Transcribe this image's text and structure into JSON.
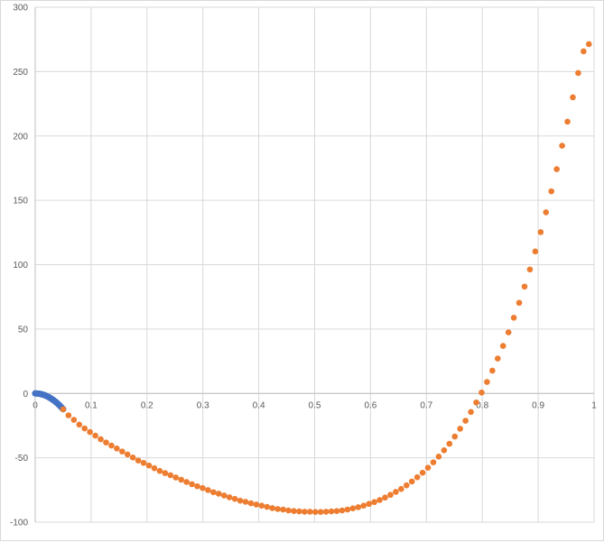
{
  "chart_data": {
    "type": "scatter",
    "title": "",
    "xlabel": "",
    "ylabel": "",
    "xlim": [
      0,
      1
    ],
    "ylim": [
      -100,
      300
    ],
    "x_ticks": [
      "0",
      "0.1",
      "0.2",
      "0.3",
      "0.4",
      "0.5",
      "0.6",
      "0.7",
      "0.8",
      "0.9",
      "1"
    ],
    "y_ticks": [
      "-100",
      "-50",
      "0",
      "50",
      "100",
      "150",
      "200",
      "250",
      "300"
    ],
    "grid": true,
    "legend": "none",
    "series": [
      {
        "color": "#4472C4",
        "x": [
          0,
          0.0025,
          0.005,
          0.0075,
          0.01,
          0.0125,
          0.015,
          0.0175,
          0.02,
          0.0225,
          0.025,
          0.0275,
          0.03,
          0.0325,
          0.035,
          0.0375,
          0.04,
          0.0425,
          0.045,
          0.0475,
          0.05
        ],
        "y": [
          0,
          -0.03,
          -0.12,
          -0.28,
          -0.49,
          -0.77,
          -1.1,
          -1.5,
          -1.96,
          -2.48,
          -3.06,
          -3.71,
          -4.41,
          -5.18,
          -6.0,
          -6.89,
          -7.84,
          -8.85,
          -9.92,
          -11.06,
          -12.25
        ]
      },
      {
        "color": "#ED7D31",
        "x": [
          0.05,
          0.0596,
          0.0692,
          0.0788,
          0.0884,
          0.098,
          0.1076,
          0.1172,
          0.1268,
          0.1364,
          0.146,
          0.1556,
          0.1652,
          0.1748,
          0.1844,
          0.194,
          0.2036,
          0.2132,
          0.2228,
          0.2324,
          0.242,
          0.2516,
          0.2612,
          0.2708,
          0.2804,
          0.29,
          0.2996,
          0.3092,
          0.3188,
          0.3284,
          0.338,
          0.3476,
          0.3572,
          0.3668,
          0.3764,
          0.386,
          0.3956,
          0.4052,
          0.4148,
          0.4244,
          0.434,
          0.4436,
          0.4532,
          0.4628,
          0.4724,
          0.482,
          0.4916,
          0.5012,
          0.5108,
          0.5204,
          0.53,
          0.5396,
          0.5492,
          0.5588,
          0.5684,
          0.578,
          0.5876,
          0.5972,
          0.6068,
          0.6164,
          0.626,
          0.6356,
          0.6452,
          0.6548,
          0.6644,
          0.674,
          0.6836,
          0.6932,
          0.7028,
          0.7124,
          0.722,
          0.7316,
          0.7412,
          0.7508,
          0.7604,
          0.77,
          0.7796,
          0.7892,
          0.7988,
          0.8084,
          0.818,
          0.8276,
          0.8372,
          0.8468,
          0.8564,
          0.866,
          0.8756,
          0.8852,
          0.8948,
          0.9044,
          0.914,
          0.9236,
          0.9332,
          0.9428,
          0.9524,
          0.962,
          0.9716,
          0.9812,
          0.9908
        ],
        "y": [
          -12.3,
          -17,
          -20.5,
          -24.2,
          -27.2,
          -30,
          -32.8,
          -35.6,
          -38.1,
          -40.5,
          -42.8,
          -45.1,
          -47.4,
          -49.8,
          -52.1,
          -54,
          -56,
          -58.1,
          -60.2,
          -61.9,
          -63.5,
          -65.3,
          -67,
          -68.8,
          -70.5,
          -72.1,
          -73.5,
          -75.1,
          -76.7,
          -77.9,
          -79.3,
          -80.7,
          -81.9,
          -83.3,
          -84.2,
          -85.3,
          -86.3,
          -87.2,
          -88.1,
          -89.1,
          -89.8,
          -90.2,
          -90.9,
          -91.4,
          -91.6,
          -91.9,
          -91.9,
          -92.1,
          -92.1,
          -91.9,
          -91.6,
          -91.4,
          -90.9,
          -90.2,
          -89.3,
          -88.4,
          -87.2,
          -85.8,
          -84.4,
          -82.8,
          -80.9,
          -78.8,
          -76.5,
          -74.2,
          -71.4,
          -68.4,
          -65.1,
          -61.6,
          -57.7,
          -53.5,
          -49.1,
          -44.2,
          -39.1,
          -33.5,
          -27.4,
          -21.2,
          -14.4,
          -7.0,
          0.7,
          8.9,
          17.7,
          27.1,
          36.9,
          47.4,
          58.8,
          70.4,
          83.0,
          96.3,
          110.3,
          125.3,
          140.7,
          157.0,
          174.2,
          192.4,
          211.1,
          230.0,
          248.9,
          265.7,
          271.3
        ]
      }
    ]
  }
}
